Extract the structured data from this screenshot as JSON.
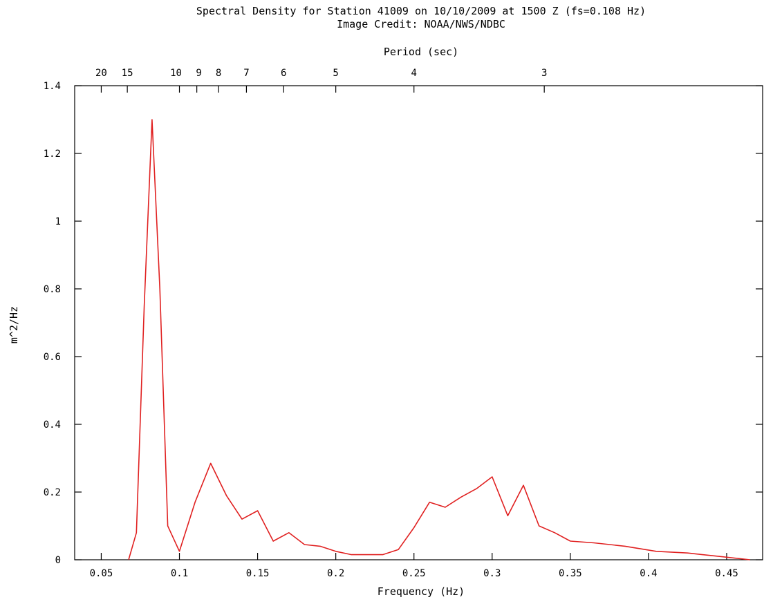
{
  "chart_data": {
    "type": "line",
    "title": "Spectral Density for Station 41009 on 10/10/2009 at 1500 Z (fs=0.108 Hz)",
    "subtitle": "Image Credit: NOAA/NWS/NDBC",
    "xlabel": "Frequency (Hz)",
    "ylabel": "m^2/Hz",
    "x2label": "Period (sec)",
    "xlim": [
      0.033,
      0.473
    ],
    "ylim": [
      0,
      1.4
    ],
    "x_ticks": [
      {
        "value": 0.05,
        "label": "0.05"
      },
      {
        "value": 0.1,
        "label": "0.1"
      },
      {
        "value": 0.15,
        "label": "0.15"
      },
      {
        "value": 0.2,
        "label": "0.2"
      },
      {
        "value": 0.25,
        "label": "0.25"
      },
      {
        "value": 0.3,
        "label": "0.3"
      },
      {
        "value": 0.35,
        "label": "0.35"
      },
      {
        "value": 0.4,
        "label": "0.4"
      },
      {
        "value": 0.45,
        "label": "0.45"
      }
    ],
    "y_ticks": [
      {
        "value": 0,
        "label": "0"
      },
      {
        "value": 0.2,
        "label": "0.2"
      },
      {
        "value": 0.4,
        "label": "0.4"
      },
      {
        "value": 0.6,
        "label": "0.6"
      },
      {
        "value": 0.8,
        "label": "0.8"
      },
      {
        "value": 1.0,
        "label": "1"
      },
      {
        "value": 1.2,
        "label": "1.2"
      },
      {
        "value": 1.4,
        "label": "1.4"
      }
    ],
    "period_ticks": [
      {
        "period": 20,
        "label": "20"
      },
      {
        "period": 15,
        "label": "15"
      },
      {
        "period": 10,
        "label": "10"
      },
      {
        "period": 9,
        "label": "9"
      },
      {
        "period": 8,
        "label": "8"
      },
      {
        "period": 7,
        "label": "7"
      },
      {
        "period": 6,
        "label": "6"
      },
      {
        "period": 5,
        "label": "5"
      },
      {
        "period": 4,
        "label": "4"
      },
      {
        "period": 3,
        "label": "3"
      }
    ],
    "grid": false,
    "line_color": "#e02020",
    "series": [
      {
        "x": [
          0.0675,
          0.0725,
          0.0775,
          0.0825,
          0.0875,
          0.0925,
          0.1,
          0.11,
          0.12,
          0.13,
          0.14,
          0.15,
          0.16,
          0.17,
          0.18,
          0.19,
          0.2,
          0.21,
          0.22,
          0.23,
          0.24,
          0.25,
          0.26,
          0.27,
          0.28,
          0.29,
          0.3,
          0.31,
          0.32,
          0.33,
          0.34,
          0.35,
          0.365,
          0.385,
          0.405,
          0.425,
          0.445,
          0.465
        ],
        "y": [
          0.0,
          0.08,
          0.75,
          1.3,
          0.8,
          0.1,
          0.025,
          0.17,
          0.285,
          0.19,
          0.12,
          0.145,
          0.055,
          0.08,
          0.045,
          0.04,
          0.025,
          0.015,
          0.015,
          0.015,
          0.03,
          0.095,
          0.17,
          0.155,
          0.185,
          0.21,
          0.245,
          0.13,
          0.22,
          0.1,
          0.08,
          0.055,
          0.05,
          0.04,
          0.025,
          0.02,
          0.01,
          0.0
        ]
      }
    ]
  }
}
